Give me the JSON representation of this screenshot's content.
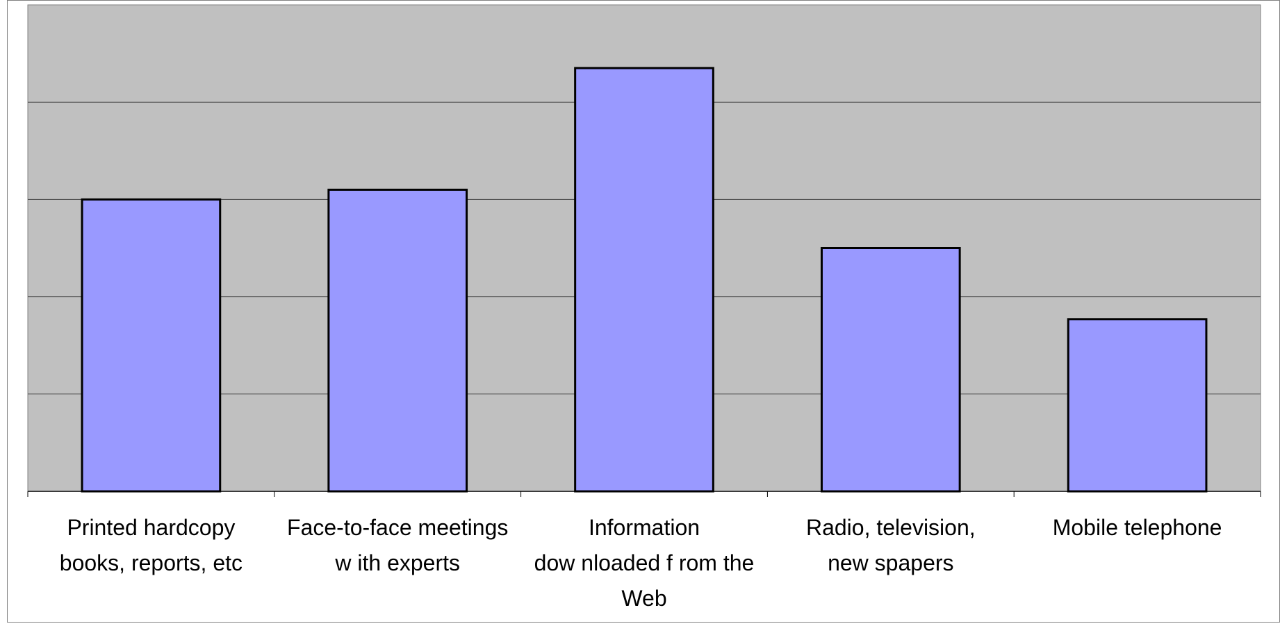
{
  "chart_data": {
    "type": "bar",
    "categories": [
      [
        "Printed hardcopy",
        "books, reports, etc"
      ],
      [
        "Face-to-face meetings",
        "w ith experts"
      ],
      [
        "Information",
        "dow nloaded f rom the",
        "Web"
      ],
      [
        "Radio, television,",
        "new spapers"
      ],
      [
        "Mobile telephone"
      ]
    ],
    "values": [
      3.0,
      3.1,
      4.35,
      2.5,
      1.77
    ],
    "ylim": [
      0,
      5
    ],
    "gridlines": [
      1,
      2,
      3,
      4
    ],
    "title": "",
    "xlabel": "",
    "ylabel": "",
    "grid": true,
    "legend": "none",
    "colors": {
      "plot_background": "#c0c0c0",
      "bar_fill": "#9999ff",
      "bar_stroke": "#000000",
      "gridline": "#404040",
      "border": "#808080"
    }
  }
}
